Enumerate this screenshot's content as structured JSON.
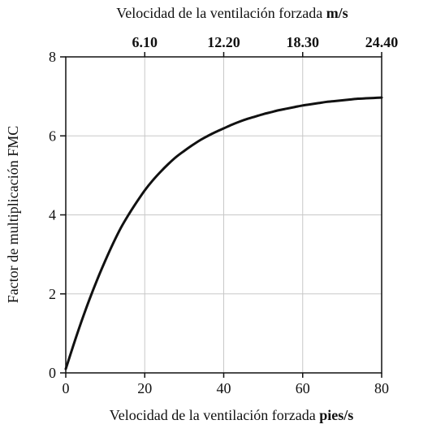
{
  "chart_data": {
    "type": "line",
    "title": "",
    "xlabel": "Velocidad de la ventilación forzada",
    "xlabel_unit": "pies/s",
    "x2label": "Velocidad de la ventilación forzada",
    "x2label_unit": "m/s",
    "ylabel": "Factor de multiplicación FMC",
    "xlim": [
      0,
      80
    ],
    "ylim": [
      0,
      8
    ],
    "x_ticks": [
      0,
      20,
      40,
      60,
      80
    ],
    "y_ticks": [
      0,
      2,
      4,
      6,
      8
    ],
    "x2_ticks": [
      {
        "at": 20,
        "label": "6.10"
      },
      {
        "at": 40,
        "label": "12.20"
      },
      {
        "at": 60,
        "label": "18.30"
      },
      {
        "at": 80,
        "label": "24.40"
      }
    ],
    "grid": true,
    "colors": {
      "line": "#111111",
      "grid": "#c8c8c8",
      "frame": "#111111"
    },
    "series": [
      {
        "x": [
          0,
          2,
          4,
          6,
          8,
          10,
          12,
          14,
          16,
          18,
          20,
          22,
          24,
          26,
          28,
          30,
          32,
          34,
          36,
          38,
          40,
          42,
          44,
          46,
          48,
          50,
          52,
          54,
          56,
          58,
          60,
          62,
          64,
          66,
          68,
          70,
          72,
          74,
          76,
          78,
          80
        ],
        "values": [
          0.1,
          0.72,
          1.31,
          1.86,
          2.37,
          2.84,
          3.28,
          3.68,
          4.02,
          4.33,
          4.62,
          4.87,
          5.09,
          5.29,
          5.47,
          5.62,
          5.76,
          5.89,
          6.0,
          6.1,
          6.19,
          6.28,
          6.36,
          6.43,
          6.49,
          6.55,
          6.6,
          6.65,
          6.69,
          6.73,
          6.77,
          6.8,
          6.83,
          6.86,
          6.88,
          6.9,
          6.92,
          6.94,
          6.95,
          6.96,
          6.97
        ]
      }
    ]
  }
}
